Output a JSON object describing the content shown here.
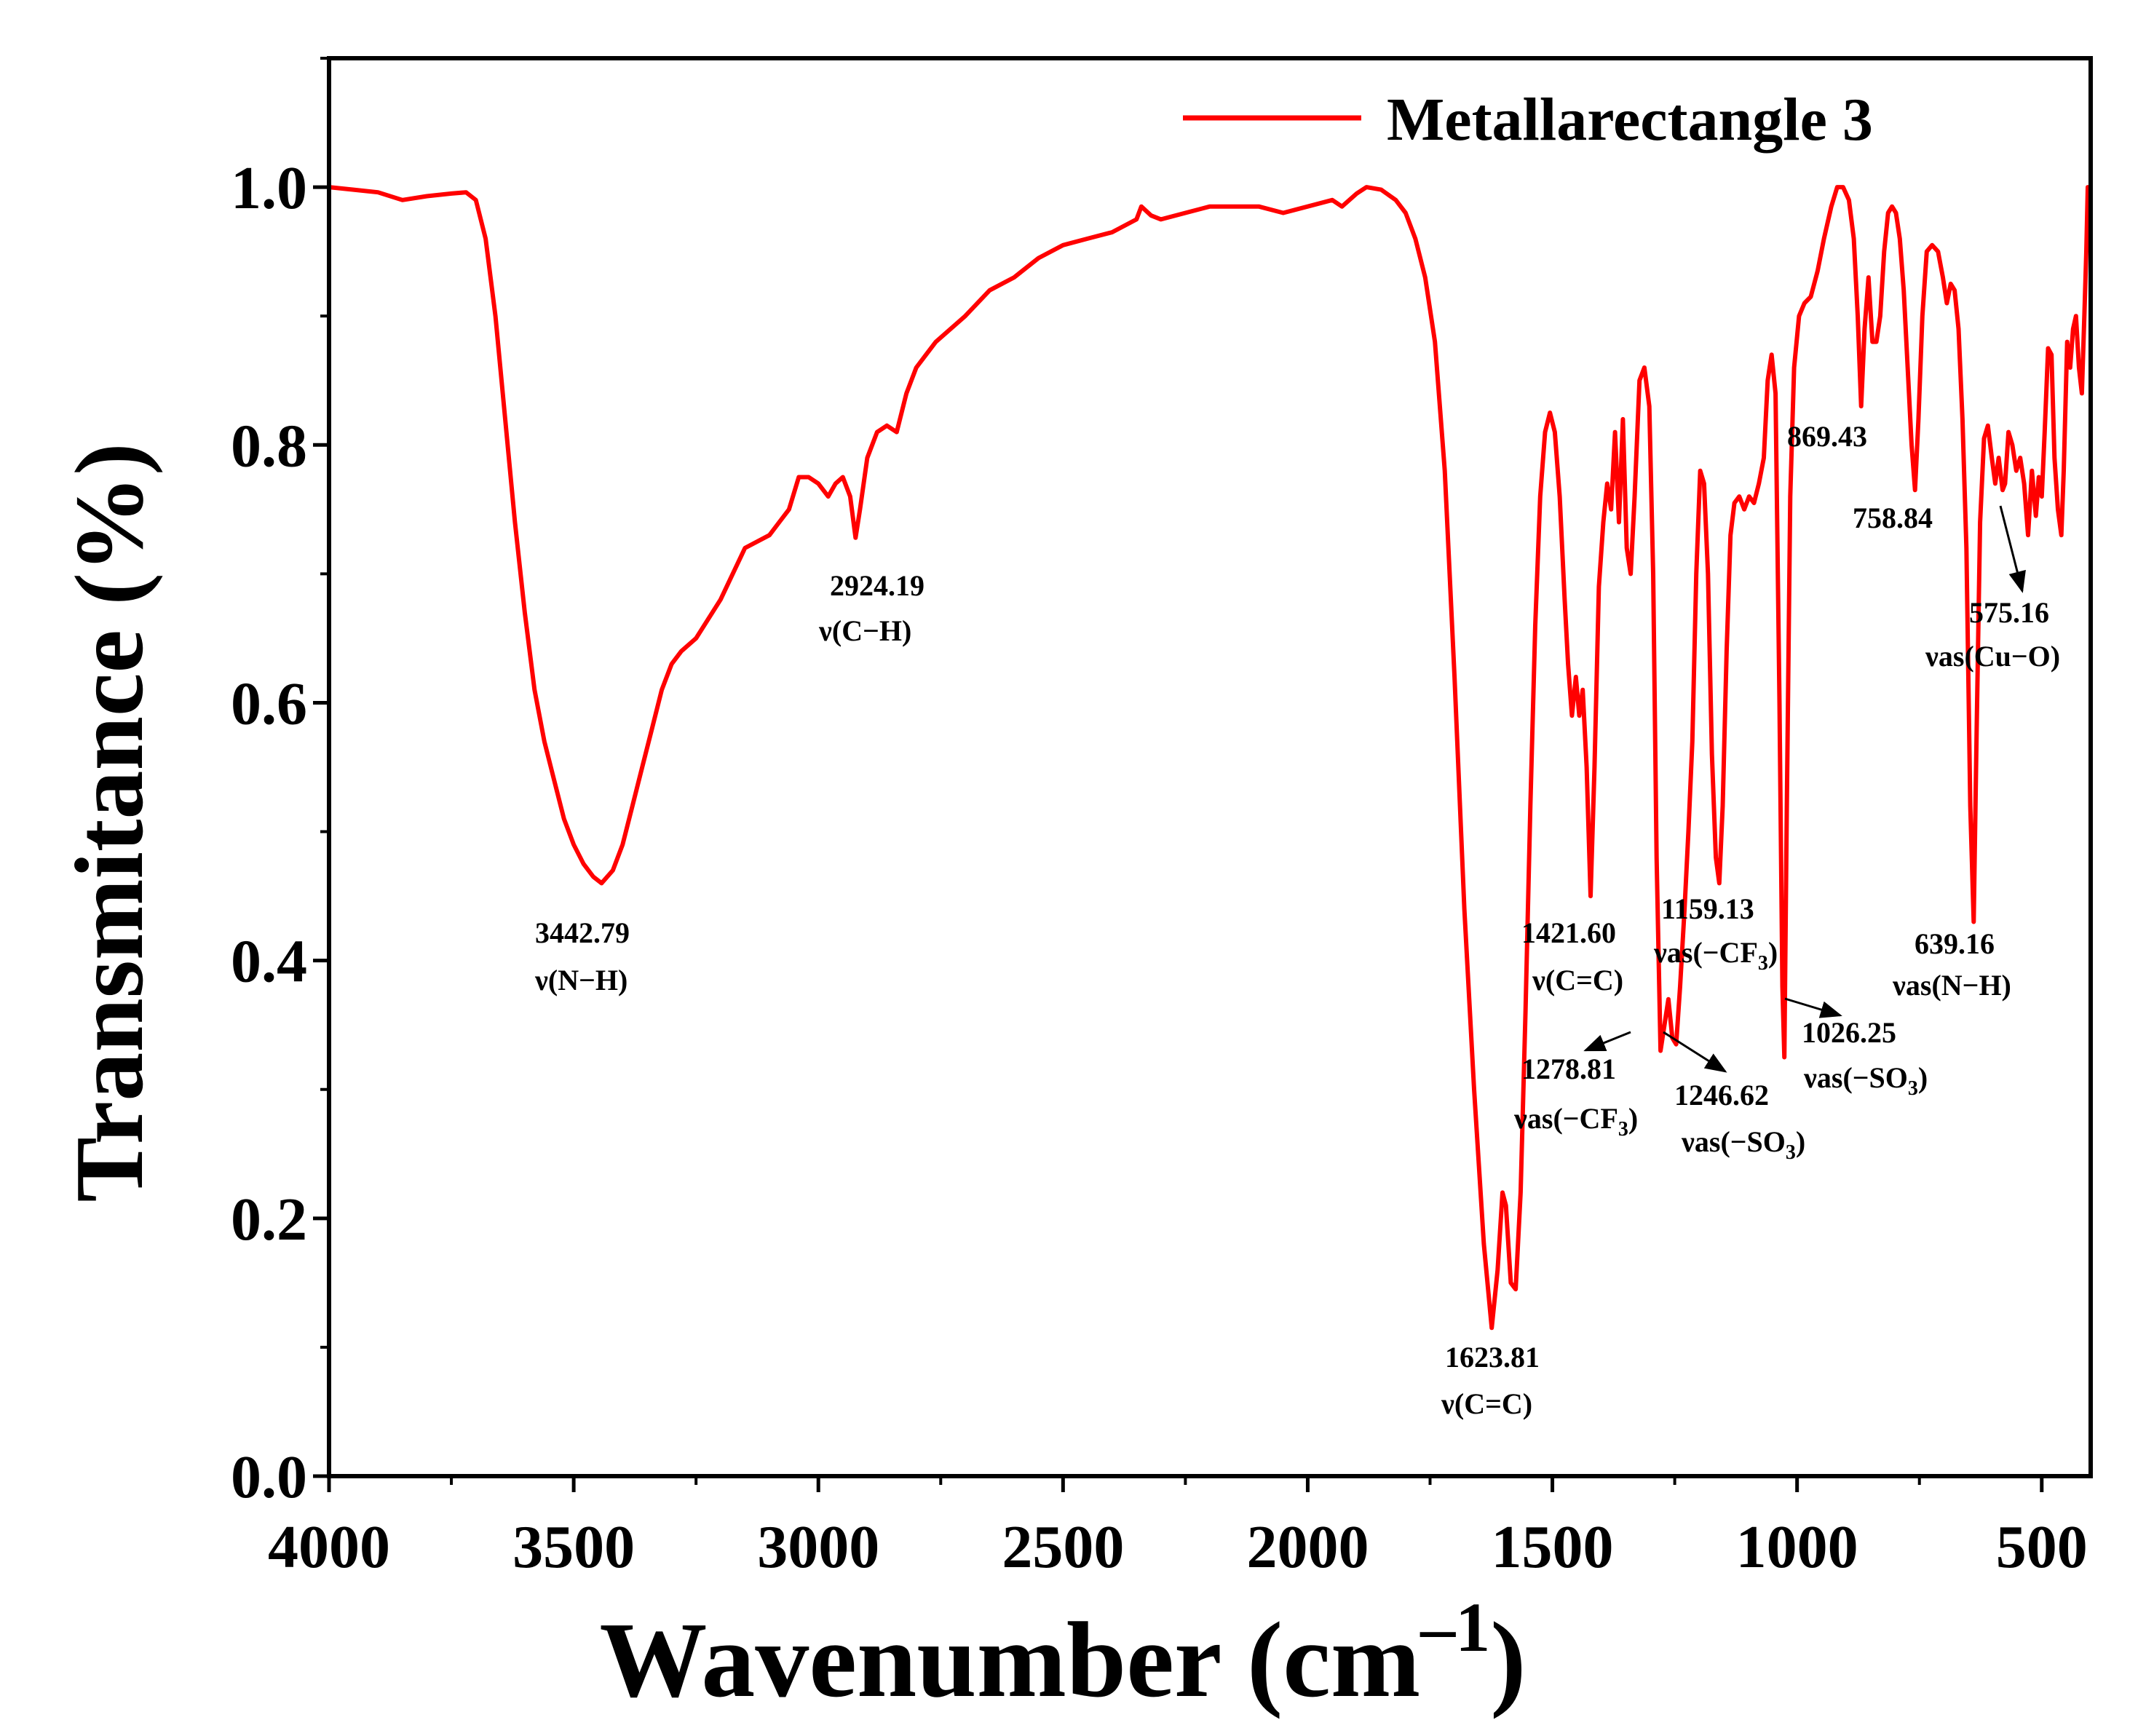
{
  "chart_data": {
    "type": "line",
    "title": "",
    "xlabel": "Wavenumber (cm",
    "xlabel_sup": "–1",
    "xlabel_close": ")",
    "ylabel": "Transmitance (%)",
    "xlim": [
      4000,
      400
    ],
    "ylim": [
      0.0,
      1.1
    ],
    "x_reversed": true,
    "grid": false,
    "legend_position": "top-right",
    "x_ticks": [
      4000,
      3500,
      3000,
      2500,
      2000,
      1500,
      1000,
      500
    ],
    "x_tick_labels": [
      "4000",
      "3500",
      "3000",
      "2500",
      "2000",
      "1500",
      "1000",
      "500"
    ],
    "y_ticks": [
      0.0,
      0.2,
      0.4,
      0.6,
      0.8,
      1.0
    ],
    "y_tick_labels": [
      "0.0",
      "0.2",
      "0.4",
      "0.6",
      "0.8",
      "1.0"
    ],
    "series": [
      {
        "name": "Metallarectangle 3",
        "color": "#ff0000",
        "points": [
          [
            4000,
            1.0
          ],
          [
            3950,
            0.998
          ],
          [
            3900,
            0.996
          ],
          [
            3850,
            0.99
          ],
          [
            3800,
            0.993
          ],
          [
            3750,
            0.995
          ],
          [
            3720,
            0.996
          ],
          [
            3700,
            0.99
          ],
          [
            3680,
            0.96
          ],
          [
            3660,
            0.9
          ],
          [
            3640,
            0.82
          ],
          [
            3620,
            0.74
          ],
          [
            3600,
            0.67
          ],
          [
            3580,
            0.61
          ],
          [
            3560,
            0.57
          ],
          [
            3540,
            0.54
          ],
          [
            3520,
            0.51
          ],
          [
            3500,
            0.49
          ],
          [
            3480,
            0.475
          ],
          [
            3460,
            0.465
          ],
          [
            3443,
            0.46
          ],
          [
            3420,
            0.47
          ],
          [
            3400,
            0.49
          ],
          [
            3380,
            0.52
          ],
          [
            3360,
            0.55
          ],
          [
            3340,
            0.58
          ],
          [
            3320,
            0.61
          ],
          [
            3300,
            0.63
          ],
          [
            3280,
            0.64
          ],
          [
            3250,
            0.65
          ],
          [
            3200,
            0.68
          ],
          [
            3150,
            0.72
          ],
          [
            3100,
            0.73
          ],
          [
            3080,
            0.74
          ],
          [
            3060,
            0.75
          ],
          [
            3040,
            0.775
          ],
          [
            3020,
            0.775
          ],
          [
            3000,
            0.77
          ],
          [
            2980,
            0.76
          ],
          [
            2965,
            0.77
          ],
          [
            2950,
            0.775
          ],
          [
            2935,
            0.76
          ],
          [
            2924,
            0.728
          ],
          [
            2915,
            0.75
          ],
          [
            2900,
            0.79
          ],
          [
            2880,
            0.81
          ],
          [
            2860,
            0.815
          ],
          [
            2840,
            0.81
          ],
          [
            2820,
            0.84
          ],
          [
            2800,
            0.86
          ],
          [
            2780,
            0.87
          ],
          [
            2760,
            0.88
          ],
          [
            2700,
            0.9
          ],
          [
            2650,
            0.92
          ],
          [
            2600,
            0.93
          ],
          [
            2550,
            0.945
          ],
          [
            2500,
            0.955
          ],
          [
            2450,
            0.96
          ],
          [
            2400,
            0.965
          ],
          [
            2350,
            0.975
          ],
          [
            2340,
            0.985
          ],
          [
            2320,
            0.978
          ],
          [
            2300,
            0.975
          ],
          [
            2250,
            0.98
          ],
          [
            2200,
            0.985
          ],
          [
            2100,
            0.985
          ],
          [
            2050,
            0.98
          ],
          [
            2000,
            0.985
          ],
          [
            1950,
            0.99
          ],
          [
            1930,
            0.985
          ],
          [
            1900,
            0.995
          ],
          [
            1880,
            1.0
          ],
          [
            1850,
            0.998
          ],
          [
            1820,
            0.99
          ],
          [
            1800,
            0.98
          ],
          [
            1780,
            0.96
          ],
          [
            1760,
            0.93
          ],
          [
            1740,
            0.88
          ],
          [
            1720,
            0.78
          ],
          [
            1700,
            0.62
          ],
          [
            1680,
            0.44
          ],
          [
            1660,
            0.3
          ],
          [
            1640,
            0.18
          ],
          [
            1624,
            0.115
          ],
          [
            1612,
            0.16
          ],
          [
            1602,
            0.22
          ],
          [
            1595,
            0.21
          ],
          [
            1585,
            0.15
          ],
          [
            1575,
            0.145
          ],
          [
            1565,
            0.22
          ],
          [
            1555,
            0.36
          ],
          [
            1545,
            0.52
          ],
          [
            1535,
            0.66
          ],
          [
            1525,
            0.76
          ],
          [
            1515,
            0.81
          ],
          [
            1505,
            0.825
          ],
          [
            1495,
            0.81
          ],
          [
            1485,
            0.76
          ],
          [
            1475,
            0.68
          ],
          [
            1468,
            0.63
          ],
          [
            1460,
            0.59
          ],
          [
            1452,
            0.62
          ],
          [
            1445,
            0.59
          ],
          [
            1438,
            0.61
          ],
          [
            1430,
            0.55
          ],
          [
            1422,
            0.45
          ],
          [
            1414,
            0.55
          ],
          [
            1405,
            0.69
          ],
          [
            1396,
            0.74
          ],
          [
            1388,
            0.77
          ],
          [
            1380,
            0.75
          ],
          [
            1372,
            0.81
          ],
          [
            1364,
            0.74
          ],
          [
            1356,
            0.82
          ],
          [
            1348,
            0.72
          ],
          [
            1340,
            0.7
          ],
          [
            1332,
            0.76
          ],
          [
            1322,
            0.85
          ],
          [
            1312,
            0.86
          ],
          [
            1302,
            0.83
          ],
          [
            1294,
            0.7
          ],
          [
            1287,
            0.48
          ],
          [
            1279,
            0.33
          ],
          [
            1271,
            0.35
          ],
          [
            1263,
            0.37
          ],
          [
            1255,
            0.34
          ],
          [
            1247,
            0.335
          ],
          [
            1239,
            0.38
          ],
          [
            1230,
            0.44
          ],
          [
            1222,
            0.5
          ],
          [
            1214,
            0.57
          ],
          [
            1206,
            0.7
          ],
          [
            1198,
            0.78
          ],
          [
            1190,
            0.77
          ],
          [
            1182,
            0.7
          ],
          [
            1174,
            0.56
          ],
          [
            1166,
            0.48
          ],
          [
            1159,
            0.46
          ],
          [
            1152,
            0.52
          ],
          [
            1144,
            0.64
          ],
          [
            1136,
            0.73
          ],
          [
            1128,
            0.755
          ],
          [
            1118,
            0.76
          ],
          [
            1108,
            0.75
          ],
          [
            1098,
            0.76
          ],
          [
            1088,
            0.755
          ],
          [
            1078,
            0.77
          ],
          [
            1068,
            0.79
          ],
          [
            1060,
            0.85
          ],
          [
            1052,
            0.87
          ],
          [
            1044,
            0.84
          ],
          [
            1036,
            0.6
          ],
          [
            1030,
            0.38
          ],
          [
            1026,
            0.325
          ],
          [
            1021,
            0.52
          ],
          [
            1014,
            0.76
          ],
          [
            1006,
            0.86
          ],
          [
            996,
            0.9
          ],
          [
            985,
            0.91
          ],
          [
            972,
            0.915
          ],
          [
            958,
            0.935
          ],
          [
            945,
            0.96
          ],
          [
            930,
            0.985
          ],
          [
            918,
            1.0
          ],
          [
            906,
            1.0
          ],
          [
            894,
            0.99
          ],
          [
            884,
            0.96
          ],
          [
            876,
            0.9
          ],
          [
            869,
            0.83
          ],
          [
            862,
            0.89
          ],
          [
            854,
            0.93
          ],
          [
            846,
            0.88
          ],
          [
            838,
            0.88
          ],
          [
            830,
            0.9
          ],
          [
            822,
            0.95
          ],
          [
            814,
            0.98
          ],
          [
            806,
            0.985
          ],
          [
            798,
            0.98
          ],
          [
            790,
            0.96
          ],
          [
            782,
            0.92
          ],
          [
            774,
            0.86
          ],
          [
            766,
            0.8
          ],
          [
            759,
            0.765
          ],
          [
            752,
            0.82
          ],
          [
            744,
            0.9
          ],
          [
            735,
            0.95
          ],
          [
            724,
            0.955
          ],
          [
            712,
            0.95
          ],
          [
            702,
            0.93
          ],
          [
            694,
            0.91
          ],
          [
            686,
            0.925
          ],
          [
            678,
            0.92
          ],
          [
            670,
            0.89
          ],
          [
            662,
            0.82
          ],
          [
            654,
            0.72
          ],
          [
            646,
            0.52
          ],
          [
            639,
            0.43
          ],
          [
            633,
            0.58
          ],
          [
            626,
            0.74
          ],
          [
            618,
            0.805
          ],
          [
            610,
            0.815
          ],
          [
            602,
            0.79
          ],
          [
            595,
            0.77
          ],
          [
            588,
            0.79
          ],
          [
            580,
            0.765
          ],
          [
            575,
            0.77
          ],
          [
            568,
            0.81
          ],
          [
            560,
            0.8
          ],
          [
            552,
            0.78
          ],
          [
            544,
            0.79
          ],
          [
            536,
            0.77
          ],
          [
            528,
            0.73
          ],
          [
            520,
            0.78
          ],
          [
            512,
            0.745
          ],
          [
            506,
            0.775
          ],
          [
            500,
            0.76
          ],
          [
            494,
            0.81
          ],
          [
            487,
            0.875
          ],
          [
            480,
            0.87
          ],
          [
            474,
            0.79
          ],
          [
            467,
            0.75
          ],
          [
            460,
            0.73
          ],
          [
            455,
            0.78
          ],
          [
            448,
            0.88
          ],
          [
            442,
            0.86
          ],
          [
            436,
            0.89
          ],
          [
            430,
            0.9
          ],
          [
            424,
            0.86
          ],
          [
            418,
            0.84
          ],
          [
            413,
            0.9
          ],
          [
            409,
            0.95
          ],
          [
            406,
            1.0
          ],
          [
            403,
            0.97
          ]
        ]
      }
    ],
    "annotations": [
      {
        "x": 3442.79,
        "value": "3442.79",
        "mode": "ν(N−H)"
      },
      {
        "x": 2924.19,
        "value": "2924.19",
        "mode": "ν(C−H)"
      },
      {
        "x": 1623.81,
        "value": "1623.81",
        "mode": "ν(C=C)"
      },
      {
        "x": 1421.6,
        "value": "1421.60",
        "mode": "ν(C=C)"
      },
      {
        "x": 1278.81,
        "value": "1278.81",
        "mode_pre": "νas(−CF",
        "mode_sub": "3",
        "mode_post": ")"
      },
      {
        "x": 1246.62,
        "value": "1246.62",
        "mode_pre": "νas(−SO",
        "mode_sub": "3",
        "mode_post": ")"
      },
      {
        "x": 1159.13,
        "value": "1159.13",
        "mode_pre": "νas(−CF",
        "mode_sub": "3",
        "mode_post": ")"
      },
      {
        "x": 1026.25,
        "value": "1026.25",
        "mode_pre": "νas(−SO",
        "mode_sub": "3",
        "mode_post": ")"
      },
      {
        "x": 869.43,
        "value": "869.43"
      },
      {
        "x": 758.84,
        "value": "758.84"
      },
      {
        "x": 639.16,
        "value": "639.16",
        "mode": "νas(N−H)"
      },
      {
        "x": 575.16,
        "value": "575.16",
        "mode": "νas(Cu−O)"
      }
    ]
  }
}
